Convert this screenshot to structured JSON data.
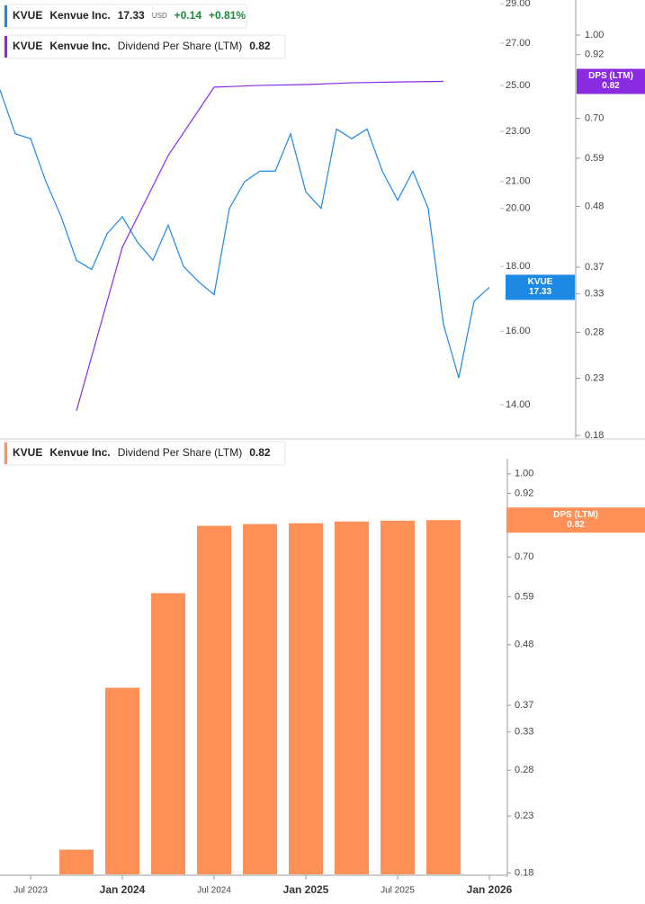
{
  "chart_data": [
    {
      "type": "line",
      "scale": "log",
      "ticker": "KVUE",
      "company": "Kenvue Inc.",
      "quote": {
        "currency": "USD",
        "change": "+0.14",
        "change_pct": "+0.81%"
      },
      "tag_label": "DPS (LTM)",
      "xlim": [
        "May 2023",
        "Jun 2026"
      ],
      "ylim": [
        13.18,
        29.2
      ],
      "yticks": [
        {
          "value": 29,
          "label": "29.00"
        },
        {
          "value": 27,
          "label": "27.00"
        },
        {
          "value": 25,
          "label": "25.00"
        },
        {
          "value": 23,
          "label": "23.00"
        },
        {
          "value": 21,
          "label": "21.00"
        },
        {
          "value": 20,
          "label": "20.00"
        },
        {
          "value": 18,
          "label": "18.00"
        },
        {
          "value": 16,
          "label": "16.00"
        },
        {
          "value": 14,
          "label": "14.00"
        }
      ],
      "y2lim": [
        0.178,
        1.162
      ],
      "y2ticks": [
        {
          "value": 1,
          "label": "1.00"
        },
        0.92,
        {
          "value": 0.7,
          "label": "0.70"
        },
        0.59,
        0.48,
        0.37,
        0.33,
        0.28,
        0.23,
        0.18
      ],
      "series": [
        {
          "name": "KVUE",
          "color": "#1e88e5",
          "axis": "y",
          "x": [
            "May 2023",
            "Jun 2023",
            "Jul 2023",
            "Aug 2023",
            "Sep 2023",
            "Oct 2023",
            "Nov 2023",
            "Dec 2023",
            "Jan 2024",
            "Feb 2024",
            "Mar 2024",
            "Apr 2024",
            "May 2024",
            "Jun 2024",
            "Jul 2024",
            "Aug 2024",
            "Sep 2024",
            "Oct 2024",
            "Nov 2024",
            "Dec 2024",
            "Jan 2025",
            "Feb 2025",
            "Mar 2025",
            "Apr 2025",
            "May 2025",
            "Jun 2025",
            "Jul 2025",
            "Aug 2025",
            "Sep 2025",
            "Oct 2025",
            "Nov 2025",
            "Dec 2025",
            "Jan 2026"
          ],
          "values": [
            24.8,
            22.9,
            22.7,
            21.0,
            19.7,
            18.2,
            17.9,
            19.1,
            19.7,
            18.8,
            18.2,
            19.4,
            18.0,
            17.5,
            17.1,
            20.0,
            21.0,
            21.4,
            21.4,
            22.9,
            20.6,
            20.0,
            23.1,
            22.7,
            23.1,
            21.4,
            20.3,
            21.4,
            20.0,
            16.2,
            14.7,
            16.9,
            17.33
          ]
        },
        {
          "name": "Dividend Per Share (LTM)",
          "color": "#8a2be2",
          "axis": "y2",
          "x": [
            "Oct 2023",
            "Jan 2024",
            "Apr 2024",
            "Jul 2024",
            "Oct 2024",
            "Jan 2025",
            "Apr 2025",
            "Jul 2025",
            "Oct 2025"
          ],
          "values": [
            0.2,
            0.403,
            0.597,
            0.8,
            0.806,
            0.809,
            0.815,
            0.818,
            0.82
          ]
        }
      ]
    },
    {
      "type": "bar",
      "scale": "log",
      "ticker": "KVUE",
      "company": "Kenvue Inc.",
      "tag_label": "DPS (LTM)",
      "xlim": [
        "May 2023",
        "Jun 2026"
      ],
      "xticks": [
        "Jul 2023",
        "Jan 2024",
        "Jul 2024",
        "Jan 2025",
        "Jul 2025",
        "Jan 2026"
      ],
      "ylim": [
        0.179,
        1.153
      ],
      "yticks": [
        {
          "value": 1,
          "label": "1.00"
        },
        0.92,
        {
          "value": 0.7,
          "label": "0.70"
        },
        0.59,
        0.48,
        0.37,
        0.33,
        0.28,
        0.23,
        0.18
      ],
      "series": [
        {
          "name": "Dividend Per Share (LTM)",
          "color": "#ff9057",
          "x": [
            "Oct 2023",
            "Jan 2024",
            "Apr 2024",
            "Jul 2024",
            "Oct 2024",
            "Jan 2025",
            "Apr 2025",
            "Jul 2025",
            "Oct 2025"
          ],
          "values": [
            0.199,
            0.399,
            0.599,
            0.8,
            0.806,
            0.809,
            0.815,
            0.818,
            0.82
          ]
        }
      ]
    }
  ]
}
